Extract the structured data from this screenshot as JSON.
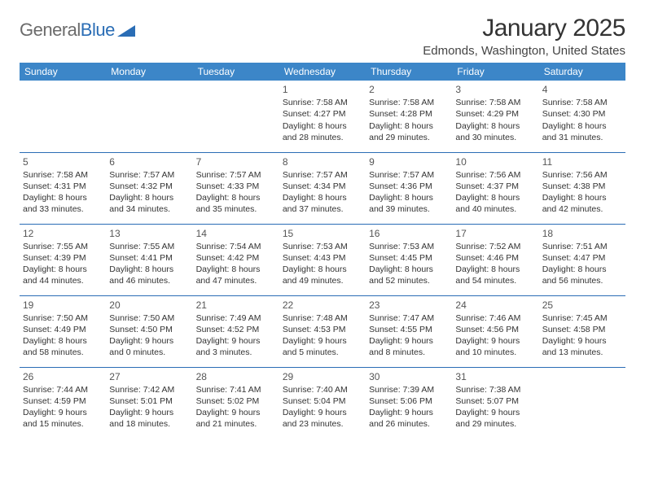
{
  "logo": {
    "text_general": "General",
    "text_blue": "Blue"
  },
  "header": {
    "month_title": "January 2025",
    "location": "Edmonds, Washington, United States"
  },
  "style": {
    "header_bg": "#3c86c8",
    "header_fg": "#ffffff",
    "row_divider": "#2a6db5",
    "page_bg": "#ffffff",
    "text_color": "#333333",
    "logo_gray": "#6b6b6b",
    "logo_blue": "#2a6db5",
    "month_title_fontsize": 30,
    "day_header_fontsize": 12,
    "cell_fontsize": 10.5
  },
  "day_headers": [
    "Sunday",
    "Monday",
    "Tuesday",
    "Wednesday",
    "Thursday",
    "Friday",
    "Saturday"
  ],
  "cells": [
    null,
    null,
    null,
    {
      "n": "1",
      "sunrise": "7:58 AM",
      "sunset": "4:27 PM",
      "dh": "8",
      "dm": "28"
    },
    {
      "n": "2",
      "sunrise": "7:58 AM",
      "sunset": "4:28 PM",
      "dh": "8",
      "dm": "29"
    },
    {
      "n": "3",
      "sunrise": "7:58 AM",
      "sunset": "4:29 PM",
      "dh": "8",
      "dm": "30"
    },
    {
      "n": "4",
      "sunrise": "7:58 AM",
      "sunset": "4:30 PM",
      "dh": "8",
      "dm": "31"
    },
    {
      "n": "5",
      "sunrise": "7:58 AM",
      "sunset": "4:31 PM",
      "dh": "8",
      "dm": "33"
    },
    {
      "n": "6",
      "sunrise": "7:57 AM",
      "sunset": "4:32 PM",
      "dh": "8",
      "dm": "34"
    },
    {
      "n": "7",
      "sunrise": "7:57 AM",
      "sunset": "4:33 PM",
      "dh": "8",
      "dm": "35"
    },
    {
      "n": "8",
      "sunrise": "7:57 AM",
      "sunset": "4:34 PM",
      "dh": "8",
      "dm": "37"
    },
    {
      "n": "9",
      "sunrise": "7:57 AM",
      "sunset": "4:36 PM",
      "dh": "8",
      "dm": "39"
    },
    {
      "n": "10",
      "sunrise": "7:56 AM",
      "sunset": "4:37 PM",
      "dh": "8",
      "dm": "40"
    },
    {
      "n": "11",
      "sunrise": "7:56 AM",
      "sunset": "4:38 PM",
      "dh": "8",
      "dm": "42"
    },
    {
      "n": "12",
      "sunrise": "7:55 AM",
      "sunset": "4:39 PM",
      "dh": "8",
      "dm": "44"
    },
    {
      "n": "13",
      "sunrise": "7:55 AM",
      "sunset": "4:41 PM",
      "dh": "8",
      "dm": "46"
    },
    {
      "n": "14",
      "sunrise": "7:54 AM",
      "sunset": "4:42 PM",
      "dh": "8",
      "dm": "47"
    },
    {
      "n": "15",
      "sunrise": "7:53 AM",
      "sunset": "4:43 PM",
      "dh": "8",
      "dm": "49"
    },
    {
      "n": "16",
      "sunrise": "7:53 AM",
      "sunset": "4:45 PM",
      "dh": "8",
      "dm": "52"
    },
    {
      "n": "17",
      "sunrise": "7:52 AM",
      "sunset": "4:46 PM",
      "dh": "8",
      "dm": "54"
    },
    {
      "n": "18",
      "sunrise": "7:51 AM",
      "sunset": "4:47 PM",
      "dh": "8",
      "dm": "56"
    },
    {
      "n": "19",
      "sunrise": "7:50 AM",
      "sunset": "4:49 PM",
      "dh": "8",
      "dm": "58"
    },
    {
      "n": "20",
      "sunrise": "7:50 AM",
      "sunset": "4:50 PM",
      "dh": "9",
      "dm": "0"
    },
    {
      "n": "21",
      "sunrise": "7:49 AM",
      "sunset": "4:52 PM",
      "dh": "9",
      "dm": "3"
    },
    {
      "n": "22",
      "sunrise": "7:48 AM",
      "sunset": "4:53 PM",
      "dh": "9",
      "dm": "5"
    },
    {
      "n": "23",
      "sunrise": "7:47 AM",
      "sunset": "4:55 PM",
      "dh": "9",
      "dm": "8"
    },
    {
      "n": "24",
      "sunrise": "7:46 AM",
      "sunset": "4:56 PM",
      "dh": "9",
      "dm": "10"
    },
    {
      "n": "25",
      "sunrise": "7:45 AM",
      "sunset": "4:58 PM",
      "dh": "9",
      "dm": "13"
    },
    {
      "n": "26",
      "sunrise": "7:44 AM",
      "sunset": "4:59 PM",
      "dh": "9",
      "dm": "15"
    },
    {
      "n": "27",
      "sunrise": "7:42 AM",
      "sunset": "5:01 PM",
      "dh": "9",
      "dm": "18"
    },
    {
      "n": "28",
      "sunrise": "7:41 AM",
      "sunset": "5:02 PM",
      "dh": "9",
      "dm": "21"
    },
    {
      "n": "29",
      "sunrise": "7:40 AM",
      "sunset": "5:04 PM",
      "dh": "9",
      "dm": "23"
    },
    {
      "n": "30",
      "sunrise": "7:39 AM",
      "sunset": "5:06 PM",
      "dh": "9",
      "dm": "26"
    },
    {
      "n": "31",
      "sunrise": "7:38 AM",
      "sunset": "5:07 PM",
      "dh": "9",
      "dm": "29"
    },
    null
  ]
}
